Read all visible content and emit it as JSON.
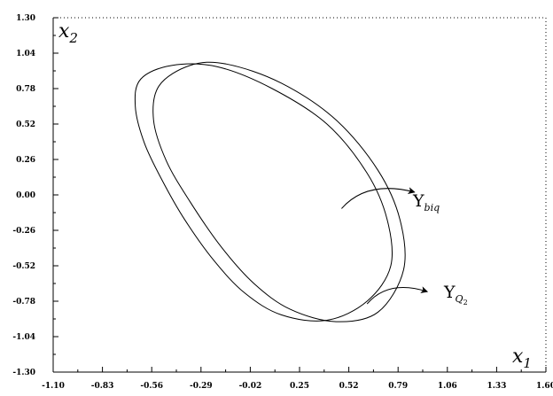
{
  "chart_data": {
    "type": "line",
    "title": "",
    "xlabel": {
      "main": "x",
      "sub": "1"
    },
    "ylabel": {
      "main": "x",
      "sub": "2"
    },
    "xlim": [
      -1.1,
      1.6
    ],
    "ylim": [
      -1.3,
      1.3
    ],
    "x_ticks": [
      "-1.10",
      "-0.83",
      "-0.56",
      "-0.29",
      "-0.02",
      "0.25",
      "0.52",
      "0.79",
      "1.06",
      "1.33",
      "1.60"
    ],
    "y_ticks": [
      "1.30",
      "1.04",
      "0.78",
      "0.52",
      "0.26",
      "0.00",
      "-0.26",
      "-0.52",
      "-0.78",
      "-1.04",
      "-1.30"
    ],
    "frame": "left-bottom-solid, top-right-dotted",
    "grid": false,
    "legend": "none",
    "series": [
      {
        "label_main": "Υ",
        "label_sub": "biq",
        "color": "#000000",
        "points": [
          [
            -0.45,
            0.95
          ],
          [
            -0.62,
            0.85
          ],
          [
            -0.65,
            0.65
          ],
          [
            -0.6,
            0.38
          ],
          [
            -0.5,
            0.1
          ],
          [
            -0.38,
            -0.18
          ],
          [
            -0.22,
            -0.48
          ],
          [
            -0.05,
            -0.72
          ],
          [
            0.15,
            -0.88
          ],
          [
            0.4,
            -0.92
          ],
          [
            0.62,
            -0.78
          ],
          [
            0.75,
            -0.52
          ],
          [
            0.73,
            -0.18
          ],
          [
            0.62,
            0.16
          ],
          [
            0.4,
            0.52
          ],
          [
            0.1,
            0.78
          ],
          [
            -0.2,
            0.94
          ],
          [
            -0.45,
            0.95
          ]
        ]
      },
      {
        "label_main": "Υ",
        "label_sub": "Q",
        "label_subsub": "2",
        "color": "#000000",
        "points": [
          [
            -0.35,
            0.95
          ],
          [
            -0.52,
            0.8
          ],
          [
            -0.55,
            0.55
          ],
          [
            -0.48,
            0.25
          ],
          [
            -0.35,
            -0.05
          ],
          [
            -0.18,
            -0.38
          ],
          [
            0.0,
            -0.65
          ],
          [
            0.2,
            -0.84
          ],
          [
            0.45,
            -0.93
          ],
          [
            0.68,
            -0.86
          ],
          [
            0.82,
            -0.55
          ],
          [
            0.8,
            -0.18
          ],
          [
            0.68,
            0.18
          ],
          [
            0.45,
            0.55
          ],
          [
            0.15,
            0.82
          ],
          [
            -0.15,
            0.96
          ],
          [
            -0.35,
            0.95
          ]
        ]
      }
    ],
    "annotations": [
      {
        "series": 0,
        "text_main": "Υ",
        "text_sub": "biq",
        "arrow_from": [
          0.48,
          -0.1
        ],
        "arrow_to": [
          0.88,
          0.02
        ]
      },
      {
        "series": 1,
        "text_main": "Υ",
        "text_sub": "Q",
        "text_subsub": "2",
        "arrow_from": [
          0.62,
          -0.8
        ],
        "arrow_to": [
          0.95,
          -0.71
        ]
      }
    ]
  }
}
